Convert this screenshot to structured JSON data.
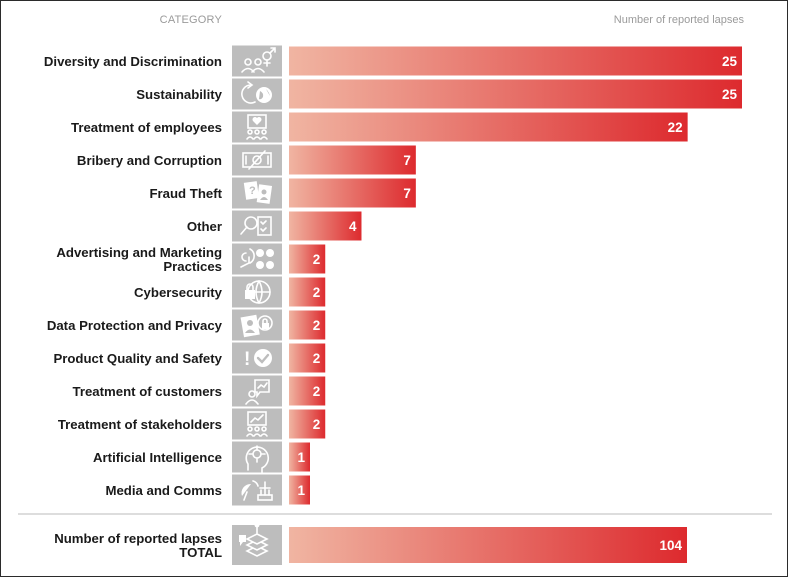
{
  "chart_data": {
    "type": "bar",
    "orientation": "horizontal",
    "category_header": "CATEGORY",
    "value_header": "Number of reported lapses",
    "categories": [
      [
        "Diversity and Discrimination"
      ],
      [
        "Sustainability"
      ],
      [
        "Treatment of employees"
      ],
      [
        "Bribery and Corruption"
      ],
      [
        "Fraud Theft"
      ],
      [
        "Other"
      ],
      [
        "Advertising and Marketing",
        "Practices"
      ],
      [
        "Cybersecurity"
      ],
      [
        "Data Protection and Privacy"
      ],
      [
        "Product Quality and Safety"
      ],
      [
        "Treatment of customers"
      ],
      [
        "Treatment of stakeholders"
      ],
      [
        "Artificial Intelligence"
      ],
      [
        "Media and Comms"
      ]
    ],
    "icons": [
      "gender-people-icon",
      "recycle-globe-icon",
      "employees-heart-icon",
      "banknote-crossed-icon",
      "fraud-documents-icon",
      "magnifier-checklist-icon",
      "megaphone-social-icon",
      "lock-globe-icon",
      "id-card-lock-icon",
      "warning-check-icon",
      "customer-chat-icon",
      "stakeholders-chart-icon",
      "ai-head-icon",
      "satellite-broadcast-icon"
    ],
    "values": [
      25,
      25,
      22,
      7,
      7,
      4,
      2,
      2,
      2,
      2,
      2,
      2,
      1,
      1
    ],
    "total": {
      "label": [
        "Number of reported lapses",
        "TOTAL"
      ],
      "value": 104,
      "icon": "stacked-layers-icon"
    },
    "max_value": 25,
    "colors": {
      "bar_start": "#f0b5a2",
      "bar_end": "#dd2a2e",
      "icon_bg": "#bdbdbd",
      "icon_fg": "#ffffff",
      "header_text": "#9a9a9a",
      "divider": "#bbbbbb"
    }
  }
}
